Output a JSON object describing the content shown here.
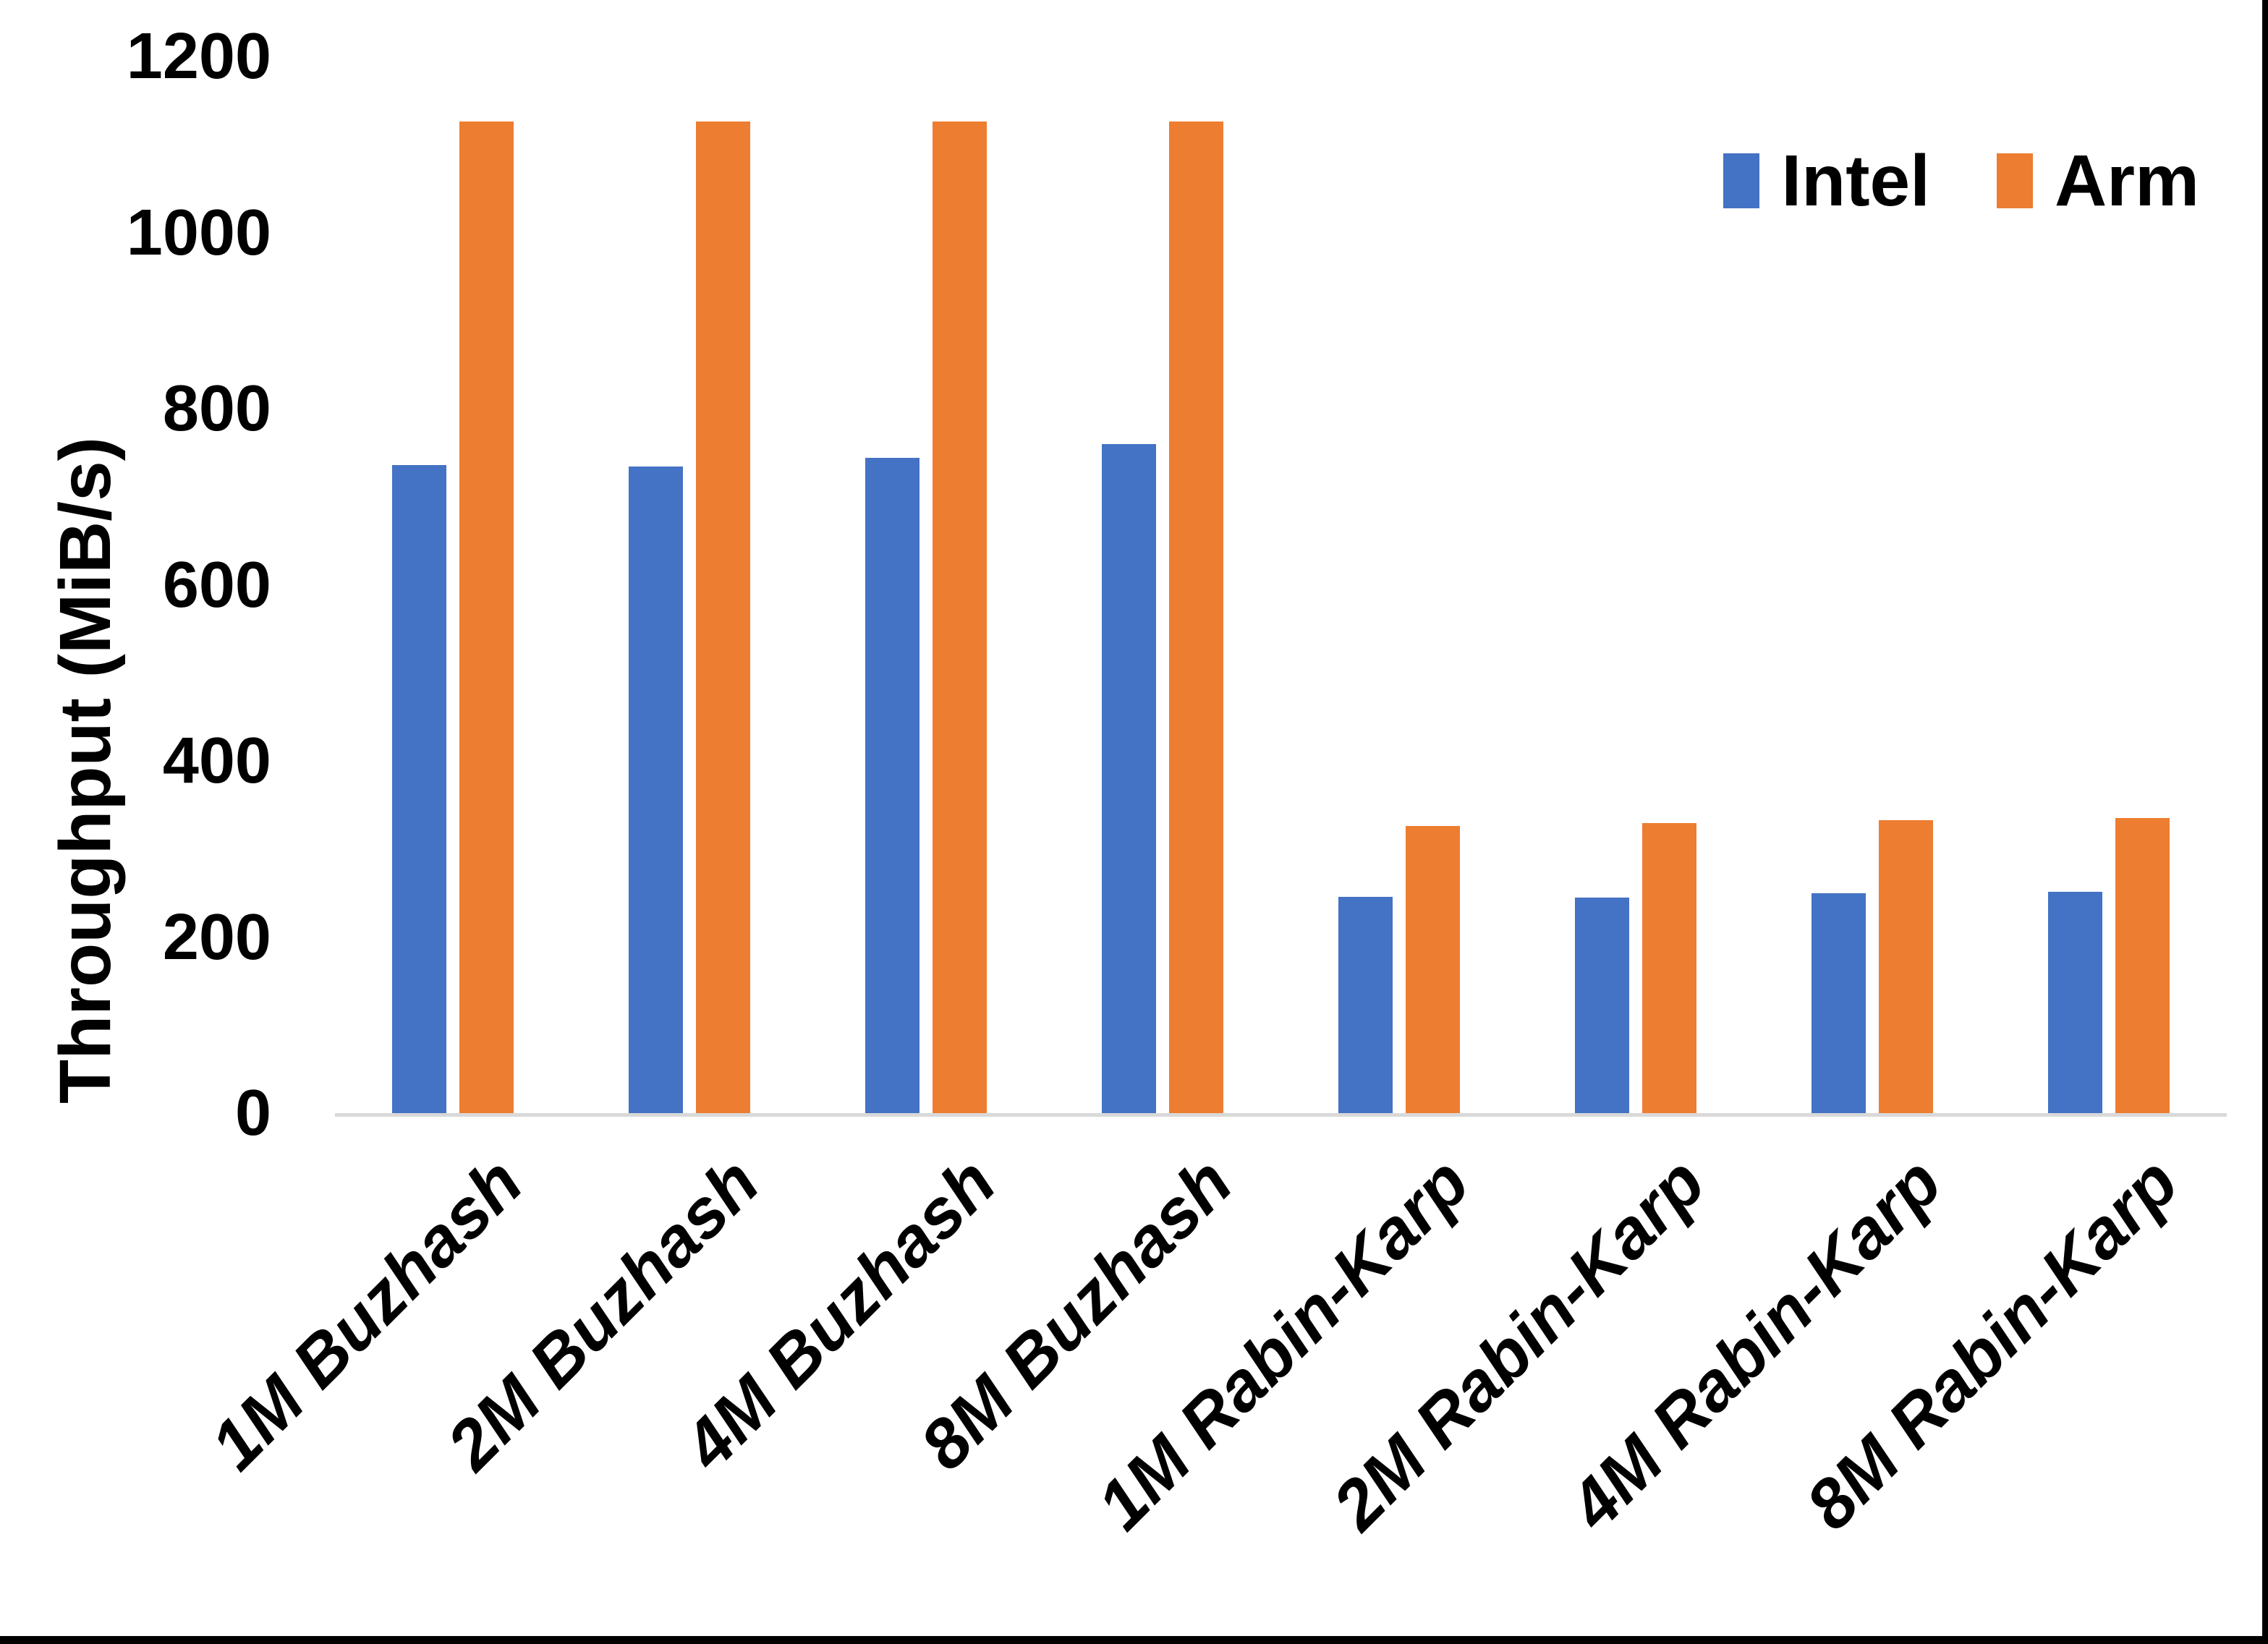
{
  "chart_data": {
    "type": "bar",
    "title": "",
    "categories": [
      "1M Buzhash",
      "2M Buzhash",
      "4M Buzhash",
      "8M Buzhash",
      "1M Rabin-Karp",
      "2M Rabin-Karp",
      "4M Rabin-Karp",
      "8M Rabin-Karp"
    ],
    "series": [
      {
        "name": "Intel",
        "color": "#4472C4",
        "values": [
          736,
          734,
          744,
          760,
          246,
          245,
          250,
          251
        ]
      },
      {
        "name": "Arm",
        "color": "#ED7D31",
        "values": [
          1126,
          1126,
          1126,
          1126,
          326,
          329,
          333,
          335
        ]
      }
    ],
    "xlabel": "",
    "ylabel": "Throughput (MiB/s)",
    "ylim": [
      0,
      1200
    ],
    "yticks": [
      0,
      200,
      400,
      600,
      800,
      1000,
      1200
    ],
    "grid": false,
    "legend_position": "top-right",
    "axis_line_color": "#D9D9D9",
    "text_color": "#000000"
  }
}
